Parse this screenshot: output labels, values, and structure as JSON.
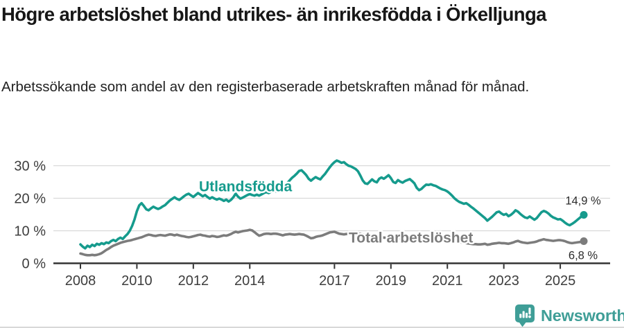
{
  "header": {
    "title": "Högre arbetslöshet bland utrikes- än inrikesfödda i Örkelljunga",
    "subtitle": "Arbetssökande som andel av den registerbaserade arbetskraften månad för månad."
  },
  "chart_data": {
    "type": "line",
    "frequency": "monthly",
    "x_start": "2008-01",
    "x_end": "2025-11",
    "x_tick_labels": [
      "2008",
      "2010",
      "2012",
      "2014",
      "2017",
      "2019",
      "2021",
      "2023",
      "2025"
    ],
    "y_ticks": {
      "values": [
        0,
        10,
        20,
        30
      ],
      "labels": [
        "0 %",
        "10 %",
        "20 %",
        "30 %"
      ]
    },
    "ylim": [
      0,
      33
    ],
    "grid": "horizontal",
    "legend_position": "inline-labels",
    "series": [
      {
        "name": "Utlandsfödda",
        "color": "#169b8d",
        "end_label": "14,9 %",
        "latest_value": 14.9,
        "values": [
          5.8,
          5.1,
          4.6,
          5.4,
          5.0,
          5.7,
          5.3,
          6.0,
          5.7,
          6.2,
          5.9,
          6.4,
          6.2,
          6.8,
          7.2,
          6.8,
          7.5,
          7.9,
          7.5,
          8.3,
          9.0,
          10.0,
          11.5,
          13.5,
          16.0,
          17.8,
          18.5,
          17.6,
          16.6,
          16.3,
          16.9,
          17.4,
          17.0,
          16.7,
          17.0,
          17.5,
          17.9,
          18.6,
          19.3,
          19.8,
          20.3,
          19.8,
          19.5,
          20.0,
          20.6,
          21.1,
          21.4,
          20.9,
          20.4,
          21.0,
          21.6,
          21.1,
          20.6,
          21.0,
          20.4,
          19.9,
          20.3,
          19.9,
          19.6,
          19.9,
          19.6,
          19.2,
          19.6,
          19.0,
          19.5,
          20.3,
          21.4,
          20.5,
          19.9,
          20.2,
          20.6,
          21.0,
          21.3,
          21.0,
          20.8,
          21.1,
          20.8,
          21.2,
          21.6,
          21.9,
          21.6,
          22.0,
          22.3,
          22.1,
          22.5,
          22.9,
          23.4,
          24.0,
          24.7,
          25.5,
          26.3,
          26.9,
          27.6,
          28.4,
          28.6,
          27.9,
          27.1,
          26.0,
          25.4,
          26.0,
          26.5,
          26.1,
          25.8,
          26.7,
          27.5,
          28.5,
          29.5,
          30.4,
          31.1,
          31.6,
          31.3,
          30.9,
          31.1,
          30.5,
          30.0,
          29.8,
          29.4,
          29.0,
          28.3,
          27.0,
          25.5,
          24.6,
          24.4,
          25.1,
          25.8,
          25.2,
          24.9,
          26.0,
          26.4,
          26.0,
          26.5,
          27.1,
          26.2,
          25.0,
          24.7,
          25.6,
          25.1,
          24.8,
          25.3,
          25.6,
          25.9,
          25.3,
          24.6,
          23.2,
          22.5,
          22.9,
          23.6,
          24.2,
          24.1,
          24.3,
          24.0,
          23.8,
          23.4,
          23.0,
          22.7,
          22.5,
          22.1,
          21.5,
          20.8,
          20.0,
          19.4,
          18.9,
          18.6,
          18.3,
          18.5,
          18.0,
          17.4,
          16.9,
          16.3,
          15.7,
          15.1,
          14.5,
          13.9,
          13.1,
          13.7,
          14.3,
          15.0,
          15.7,
          15.9,
          15.3,
          14.9,
          15.2,
          14.5,
          14.9,
          15.5,
          16.3,
          15.9,
          15.2,
          14.6,
          14.1,
          13.9,
          14.4,
          13.9,
          13.4,
          13.9,
          14.8,
          15.7,
          16.1,
          15.8,
          15.3,
          14.6,
          14.1,
          13.8,
          13.5,
          13.6,
          13.1,
          12.5,
          12.0,
          11.7,
          12.1,
          12.6,
          13.2,
          13.8,
          14.4,
          14.9
        ]
      },
      {
        "name": "Total arbetslöshet",
        "color": "#7c7c7c",
        "end_label": "6,8 %",
        "latest_value": 6.8,
        "values": [
          3.0,
          2.8,
          2.6,
          2.5,
          2.5,
          2.6,
          2.5,
          2.6,
          2.8,
          3.1,
          3.6,
          4.1,
          4.5,
          5.0,
          5.4,
          5.7,
          6.0,
          6.3,
          6.5,
          6.7,
          6.9,
          7.0,
          7.2,
          7.4,
          7.6,
          7.8,
          8.0,
          8.3,
          8.6,
          8.8,
          8.7,
          8.5,
          8.4,
          8.6,
          8.7,
          8.6,
          8.5,
          8.7,
          8.9,
          8.8,
          8.6,
          8.8,
          8.6,
          8.4,
          8.3,
          8.1,
          8.0,
          8.1,
          8.3,
          8.5,
          8.7,
          8.8,
          8.6,
          8.5,
          8.3,
          8.2,
          8.4,
          8.3,
          8.1,
          8.2,
          8.4,
          8.6,
          8.5,
          8.7,
          9.0,
          9.4,
          9.7,
          9.5,
          9.7,
          9.9,
          10.0,
          10.1,
          10.3,
          10.1,
          9.6,
          9.0,
          8.5,
          8.7,
          9.0,
          9.1,
          9.1,
          9.0,
          9.1,
          9.1,
          9.0,
          8.8,
          8.6,
          8.8,
          8.9,
          9.0,
          8.9,
          8.8,
          8.9,
          9.0,
          8.9,
          8.8,
          8.5,
          8.1,
          7.7,
          7.8,
          8.1,
          8.3,
          8.4,
          8.6,
          8.9,
          9.2,
          9.5,
          9.6,
          9.7,
          9.4,
          9.1,
          9.0,
          8.9,
          9.0,
          9.1,
          8.9,
          8.8,
          8.9,
          9.0,
          9.1,
          8.9,
          8.7,
          8.6,
          8.5,
          8.4,
          8.3,
          8.2,
          8.1,
          8.0,
          7.9,
          7.9,
          8.0,
          7.9,
          7.8,
          7.7,
          7.6,
          7.6,
          7.5,
          7.5,
          7.6,
          7.6,
          7.5,
          7.4,
          7.3,
          7.4,
          7.5,
          7.9,
          8.3,
          8.5,
          8.6,
          8.5,
          8.3,
          8.1,
          7.9,
          7.7,
          7.6,
          7.5,
          7.3,
          7.1,
          6.9,
          6.7,
          6.5,
          6.4,
          6.3,
          6.2,
          6.1,
          6.0,
          5.9,
          5.9,
          5.8,
          5.8,
          5.9,
          6.0,
          5.7,
          5.8,
          6.0,
          6.1,
          6.2,
          6.3,
          6.2,
          6.2,
          6.1,
          6.0,
          6.2,
          6.4,
          6.7,
          6.9,
          6.6,
          6.4,
          6.3,
          6.2,
          6.3,
          6.4,
          6.5,
          6.7,
          7.0,
          7.2,
          7.4,
          7.2,
          7.1,
          7.0,
          6.9,
          7.0,
          7.1,
          7.1,
          7.0,
          6.8,
          6.5,
          6.3,
          6.2,
          6.3,
          6.4,
          6.5,
          6.6,
          6.8
        ]
      }
    ]
  },
  "footer": {
    "brand": "Newsworthy"
  },
  "colors": {
    "accent_teal": "#169b8d",
    "series_gray": "#7c7c7c",
    "grid": "#d9d9d9",
    "axis": "#333333",
    "brand_teal": "#3f9e97",
    "text": "#171717"
  }
}
